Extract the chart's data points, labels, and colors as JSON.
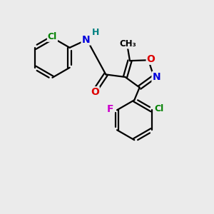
{
  "bg_color": "#ebebeb",
  "bond_color": "#000000",
  "figsize": [
    3.0,
    3.0
  ],
  "dpi": 100,
  "lw": 1.6,
  "colors": {
    "C": "#000000",
    "Cl": "#008000",
    "N": "#0000DD",
    "H": "#008080",
    "O": "#DD0000",
    "F": "#CC00CC"
  }
}
